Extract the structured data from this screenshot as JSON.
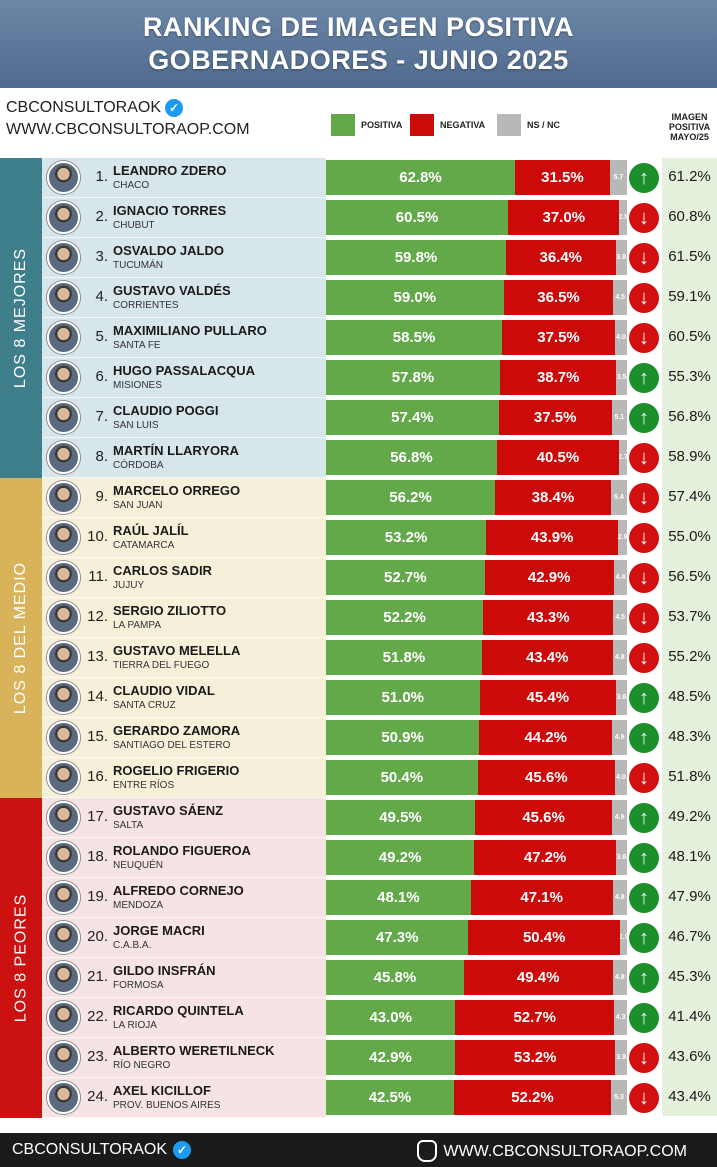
{
  "header": {
    "line1": "RANKING DE IMAGEN POSITIVA",
    "line2": "GOBERNADORES - JUNIO 2025"
  },
  "brand": {
    "name": "CBCONSULTORAOK",
    "url": "WWW.CBCONSULTORAOP.COM"
  },
  "legend": {
    "positive": "POSITIVA",
    "negative": "NEGATIVA",
    "nsnc": "NS / NC"
  },
  "prev_header": {
    "line1": "IMAGEN",
    "line2": "POSITIVA",
    "line3": "MAYO/25"
  },
  "groups": [
    {
      "label": "LOS 8 MEJORES",
      "color": "#3f7f8c"
    },
    {
      "label": "LOS 8 DEL MEDIO",
      "color": "#d9b35a"
    },
    {
      "label": "LOS 8 PEORES",
      "color": "#cc1111"
    }
  ],
  "colors": {
    "positive": "#63a94a",
    "negative": "#cc0a0a",
    "nsnc": "#b8b8b8",
    "up": "#1a8f2b",
    "down": "#d31010"
  },
  "chart_data": {
    "type": "bar",
    "title": "RANKING DE IMAGEN POSITIVA GOBERNADORES - JUNIO 2025",
    "series_names": [
      "POSITIVA",
      "NEGATIVA",
      "NS / NC"
    ],
    "rows": [
      {
        "rank": "1.",
        "name": "LEANDRO ZDERO",
        "province": "CHACO",
        "positive": "62.8%",
        "negative": "31.5%",
        "nsnc": "5.7",
        "trend": "up",
        "prev": "61.2%"
      },
      {
        "rank": "2.",
        "name": "IGNACIO TORRES",
        "province": "CHUBUT",
        "positive": "60.5%",
        "negative": "37.0%",
        "nsnc": "2.5",
        "trend": "down",
        "prev": "60.8%"
      },
      {
        "rank": "3.",
        "name": "OSVALDO JALDO",
        "province": "TUCUMÁN",
        "positive": "59.8%",
        "negative": "36.4%",
        "nsnc": "3.8",
        "trend": "down",
        "prev": "61.5%"
      },
      {
        "rank": "4.",
        "name": "GUSTAVO VALDÉS",
        "province": "CORRIENTES",
        "positive": "59.0%",
        "negative": "36.5%",
        "nsnc": "4.5",
        "trend": "down",
        "prev": "59.1%"
      },
      {
        "rank": "5.",
        "name": "MAXIMILIANO PULLARO",
        "province": "SANTA FE",
        "positive": "58.5%",
        "negative": "37.5%",
        "nsnc": "4.0",
        "trend": "down",
        "prev": "60.5%"
      },
      {
        "rank": "6.",
        "name": "HUGO PASSALACQUA",
        "province": "MISIONES",
        "positive": "57.8%",
        "negative": "38.7%",
        "nsnc": "3.5",
        "trend": "up",
        "prev": "55.3%"
      },
      {
        "rank": "7.",
        "name": "CLAUDIO POGGI",
        "province": "SAN LUIS",
        "positive": "57.4%",
        "negative": "37.5%",
        "nsnc": "5.1",
        "trend": "up",
        "prev": "56.8%"
      },
      {
        "rank": "8.",
        "name": "MARTÍN LLARYORA",
        "province": "CÓRDOBA",
        "positive": "56.8%",
        "negative": "40.5%",
        "nsnc": "2.7",
        "trend": "down",
        "prev": "58.9%"
      },
      {
        "rank": "9.",
        "name": "MARCELO ORREGO",
        "province": "SAN JUAN",
        "positive": "56.2%",
        "negative": "38.4%",
        "nsnc": "5.4",
        "trend": "down",
        "prev": "57.4%"
      },
      {
        "rank": "10.",
        "name": "RAÚL JALÍL",
        "province": "CATAMARCA",
        "positive": "53.2%",
        "negative": "43.9%",
        "nsnc": "2.9",
        "trend": "down",
        "prev": "55.0%"
      },
      {
        "rank": "11.",
        "name": "CARLOS SADIR",
        "province": "JUJUY",
        "positive": "52.7%",
        "negative": "42.9%",
        "nsnc": "4.4",
        "trend": "down",
        "prev": "56.5%"
      },
      {
        "rank": "12.",
        "name": "SERGIO ZILIOTTO",
        "province": "LA PAMPA",
        "positive": "52.2%",
        "negative": "43.3%",
        "nsnc": "4.5",
        "trend": "down",
        "prev": "53.7%"
      },
      {
        "rank": "13.",
        "name": "GUSTAVO MELELLA",
        "province": "TIERRA DEL FUEGO",
        "positive": "51.8%",
        "negative": "43.4%",
        "nsnc": "4.8",
        "trend": "down",
        "prev": "55.2%"
      },
      {
        "rank": "14.",
        "name": "CLAUDIO VIDAL",
        "province": "SANTA CRUZ",
        "positive": "51.0%",
        "negative": "45.4%",
        "nsnc": "3.6",
        "trend": "up",
        "prev": "48.5%"
      },
      {
        "rank": "15.",
        "name": "GERARDO ZAMORA",
        "province": "SANTIAGO DEL ESTERO",
        "positive": "50.9%",
        "negative": "44.2%",
        "nsnc": "4.9",
        "trend": "up",
        "prev": "48.3%"
      },
      {
        "rank": "16.",
        "name": "ROGELIO FRIGERIO",
        "province": "ENTRE RÍOS",
        "positive": "50.4%",
        "negative": "45.6%",
        "nsnc": "4.0",
        "trend": "down",
        "prev": "51.8%"
      },
      {
        "rank": "17.",
        "name": "GUSTAVO SÁENZ",
        "province": "SALTA",
        "positive": "49.5%",
        "negative": "45.6%",
        "nsnc": "4.9",
        "trend": "up",
        "prev": "49.2%"
      },
      {
        "rank": "18.",
        "name": "ROLANDO FIGUEROA",
        "province": "NEUQUÉN",
        "positive": "49.2%",
        "negative": "47.2%",
        "nsnc": "3.6",
        "trend": "up",
        "prev": "48.1%"
      },
      {
        "rank": "19.",
        "name": "ALFREDO CORNEJO",
        "province": "MENDOZA",
        "positive": "48.1%",
        "negative": "47.1%",
        "nsnc": "4.8",
        "trend": "up",
        "prev": "47.9%"
      },
      {
        "rank": "20.",
        "name": "JORGE MACRI",
        "province": "C.A.B.A.",
        "positive": "47.3%",
        "negative": "50.4%",
        "nsnc": "2.3",
        "trend": "up",
        "prev": "46.7%"
      },
      {
        "rank": "21.",
        "name": "GILDO INSFRÁN",
        "province": "FORMOSA",
        "positive": "45.8%",
        "negative": "49.4%",
        "nsnc": "4.8",
        "trend": "up",
        "prev": "45.3%"
      },
      {
        "rank": "22.",
        "name": "RICARDO QUINTELA",
        "province": "LA RIOJA",
        "positive": "43.0%",
        "negative": "52.7%",
        "nsnc": "4.3",
        "trend": "up",
        "prev": "41.4%"
      },
      {
        "rank": "23.",
        "name": "ALBERTO WERETILNECK",
        "province": "RÍO NEGRO",
        "positive": "42.9%",
        "negative": "53.2%",
        "nsnc": "3.9",
        "trend": "down",
        "prev": "43.6%"
      },
      {
        "rank": "24.",
        "name": "AXEL KICILLOF",
        "province": "PROV. BUENOS AIRES",
        "positive": "42.5%",
        "negative": "52.2%",
        "nsnc": "5.3",
        "trend": "down",
        "prev": "43.4%"
      }
    ]
  },
  "footer": {
    "left": "CBCONSULTORAOK",
    "right": "WWW.CBCONSULTORAOP.COM"
  }
}
